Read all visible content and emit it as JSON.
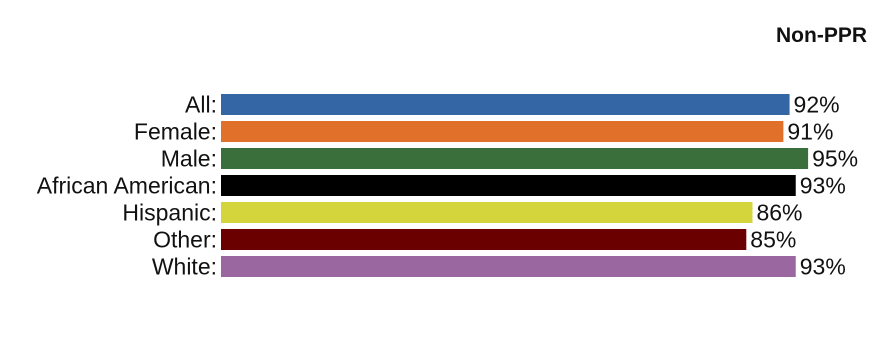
{
  "chart_data": {
    "type": "bar",
    "orientation": "horizontal",
    "title": "Non-PPR",
    "categories": [
      "All:",
      "Female:",
      "Male:",
      "African American:",
      "Hispanic:",
      "Other:",
      "White:"
    ],
    "values": [
      92,
      91,
      95,
      93,
      86,
      85,
      93
    ],
    "value_labels": [
      "92%",
      "91%",
      "95%",
      "93%",
      "86%",
      "85%",
      "93%"
    ],
    "colors": [
      "#3465a4",
      "#e0702a",
      "#3a6e3a",
      "#000000",
      "#d4d43c",
      "#6b0000",
      "#9a67a0"
    ],
    "xlim": [
      0,
      100
    ],
    "grid": false,
    "legend": "none"
  }
}
